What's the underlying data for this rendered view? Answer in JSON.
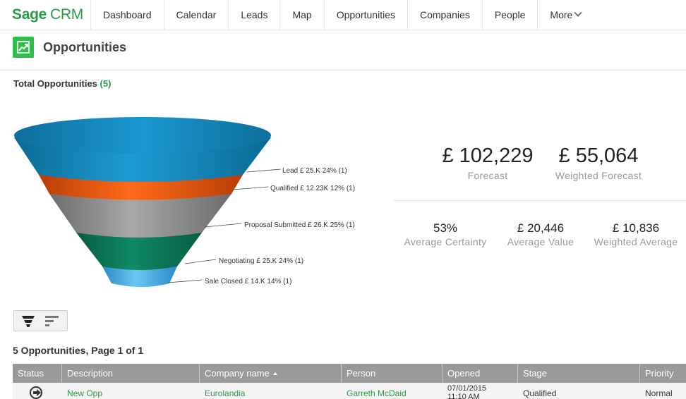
{
  "app": {
    "logo_bold": "Sage",
    "logo_light": "CRM"
  },
  "nav": {
    "items": [
      "Dashboard",
      "Calendar",
      "Leads",
      "Map",
      "Opportunities",
      "Companies",
      "People",
      "More"
    ]
  },
  "page": {
    "title": "Opportunities"
  },
  "summary": {
    "total_label": "Total Opportunities",
    "total_count": "(5)"
  },
  "chart_data": {
    "type": "funnel",
    "stages": [
      {
        "name": "Lead",
        "label": "Lead  £ 25.K 24% (1)",
        "value_k": 25,
        "percent": 24,
        "count": 1,
        "color": "#1a8cc0"
      },
      {
        "name": "Qualified",
        "label": "Qualified  £ 12.23K 12% (1)",
        "value_k": 12.23,
        "percent": 12,
        "count": 1,
        "color": "#e8570f"
      },
      {
        "name": "Proposal Submitted",
        "label": "Proposal Submitted  £ 26.K 25% (1)",
        "value_k": 26,
        "percent": 25,
        "count": 1,
        "color": "#8a8a8a"
      },
      {
        "name": "Negotiating",
        "label": "Negotiating  £ 25.K 24% (1)",
        "value_k": 25,
        "percent": 24,
        "count": 1,
        "color": "#0e7a5a"
      },
      {
        "name": "Sale Closed",
        "label": "Sale Closed  £ 14.K 14% (1)",
        "value_k": 14,
        "percent": 14,
        "count": 1,
        "color": "#49aee8"
      }
    ]
  },
  "metrics": {
    "forecast": {
      "value": "£ 102,229",
      "label": "Forecast"
    },
    "weighted_forecast": {
      "value": "£ 55,064",
      "label": "Weighted Forecast"
    },
    "avg_certainty": {
      "value": "53%",
      "label": "Average Certainty"
    },
    "avg_value": {
      "value": "£ 20,446",
      "label": "Average Value"
    },
    "weighted_avg": {
      "value": "£ 10,836",
      "label": "Weighted Average"
    }
  },
  "list": {
    "count_label": "5 Opportunities, Page 1 of 1",
    "columns": [
      "Status",
      "Description",
      "Company name",
      "Person",
      "Opened",
      "Stage",
      "Priority"
    ],
    "rows": [
      {
        "description": "New Opp",
        "company": "Eurolandia",
        "person": "Garreth McDaid",
        "opened_date": "07/01/2015",
        "opened_time": "11:10 AM",
        "stage": "Qualified",
        "priority": "Normal"
      }
    ]
  }
}
